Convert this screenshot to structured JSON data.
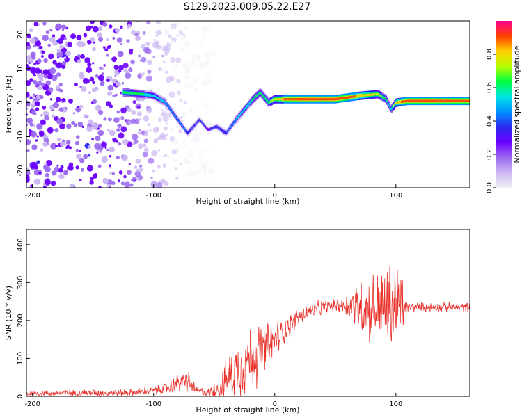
{
  "title": "S129.2023.009.05.22.E27",
  "colors": {
    "line": "#e8312a",
    "axis": "#000000",
    "colormap": [
      "#f2f0f7",
      "#cbb6f2",
      "#9b6af0",
      "#6a00ff",
      "#2a2af0",
      "#0090ff",
      "#00e5e5",
      "#00ff40",
      "#b8ff00",
      "#ffd000",
      "#ff4000",
      "#ff0090"
    ]
  },
  "chart_data": [
    {
      "type": "heatmap",
      "title": "S129.2023.009.05.22.E27",
      "xlabel": "Height of straight line (km)",
      "ylabel": "Frequency (Hz)",
      "xlim": [
        -205,
        161
      ],
      "ylim": [
        -25,
        24
      ],
      "xticks": [
        -200,
        -100,
        0,
        100
      ],
      "yticks": [
        -20,
        -10,
        0,
        10,
        20
      ],
      "colorbar": {
        "label": "Normalized spectral amplitude",
        "range": [
          0,
          1
        ],
        "ticks": [
          "0.0",
          "0.2",
          "0.4",
          "0.6",
          "0.8"
        ]
      },
      "ridge": {
        "description_points_x": [
          -125,
          -110,
          -100,
          -90,
          -80,
          -72,
          -62,
          -55,
          -48,
          -40,
          -32,
          -25,
          -18,
          -12,
          -5,
          0,
          10,
          30,
          50,
          70,
          85,
          92,
          96,
          100,
          110,
          130,
          160
        ],
        "frequency_hz": [
          3,
          2.5,
          2,
          0,
          -5,
          -9,
          -5,
          -8,
          -7,
          -9,
          -5,
          -2,
          1,
          3,
          0,
          1,
          1,
          1,
          1,
          2,
          2.5,
          1,
          -2,
          0,
          0.5,
          0.5,
          0.5
        ],
        "amplitude": [
          0.65,
          0.6,
          0.55,
          0.5,
          0.45,
          0.4,
          0.35,
          0.3,
          0.35,
          0.4,
          0.5,
          0.55,
          0.6,
          0.6,
          0.65,
          0.75,
          0.9,
          0.95,
          0.95,
          0.85,
          0.75,
          0.6,
          0.55,
          0.8,
          0.95,
          0.95,
          0.9
        ]
      },
      "noise_region_x": [
        -205,
        -70
      ],
      "noise_amplitude": 0.2
    },
    {
      "type": "line",
      "xlabel": "Height of straight line (km)",
      "ylabel": "SNR (10 * v/v)",
      "xlim": [
        -205,
        161
      ],
      "ylim": [
        0,
        440
      ],
      "xticks": [
        -200,
        -100,
        0,
        100
      ],
      "yticks": [
        0,
        100,
        200,
        300,
        400
      ],
      "envelope": {
        "x": [
          -205,
          -120,
          -100,
          -90,
          -80,
          -72,
          -65,
          -55,
          -45,
          -35,
          -25,
          -15,
          -5,
          0,
          10,
          20,
          30,
          40,
          50,
          60,
          70,
          80,
          90,
          100,
          104,
          108,
          120,
          140,
          161
        ],
        "mean": [
          8,
          10,
          15,
          20,
          35,
          40,
          15,
          10,
          25,
          60,
          90,
          110,
          130,
          150,
          180,
          210,
          225,
          235,
          240,
          240,
          240,
          235,
          235,
          235,
          230,
          235,
          235,
          235,
          235
        ],
        "spread": [
          10,
          12,
          14,
          20,
          30,
          40,
          15,
          15,
          40,
          90,
          110,
          100,
          80,
          60,
          40,
          30,
          25,
          25,
          20,
          40,
          90,
          110,
          130,
          160,
          150,
          20,
          15,
          15,
          15
        ]
      }
    }
  ]
}
